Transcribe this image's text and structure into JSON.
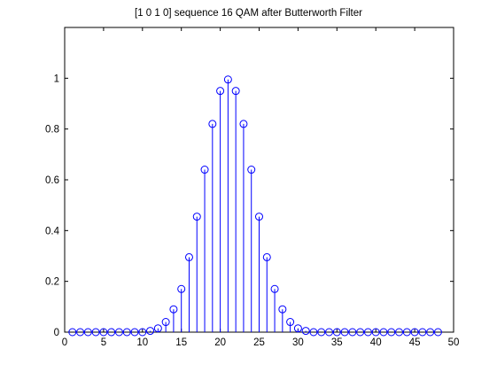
{
  "chart_data": {
    "type": "stem",
    "title": "[1 0 1 0] sequence 16 QAM after Butterworth Filter",
    "xlabel": "",
    "ylabel": "",
    "xlim": [
      0,
      50
    ],
    "ylim": [
      0,
      1.2
    ],
    "xticks": [
      0,
      5,
      10,
      15,
      20,
      25,
      30,
      35,
      40,
      45,
      50
    ],
    "yticks": [
      0,
      0.2,
      0.4,
      0.6,
      0.8,
      1
    ],
    "ytick_labels": [
      "0",
      "0.2",
      "0.4",
      "0.6",
      "0.8",
      "1"
    ],
    "grid": false,
    "marker": "circle",
    "series_color": "#0000ff",
    "x": [
      1,
      2,
      3,
      4,
      5,
      6,
      7,
      8,
      9,
      10,
      11,
      12,
      13,
      14,
      15,
      16,
      17,
      18,
      19,
      20,
      21,
      22,
      23,
      24,
      25,
      26,
      27,
      28,
      29,
      30,
      31,
      32,
      33,
      34,
      35,
      36,
      37,
      38,
      39,
      40,
      41,
      42,
      43,
      44,
      45,
      46,
      47,
      48
    ],
    "y": [
      0,
      0,
      0,
      0,
      0,
      0,
      0,
      0,
      0,
      0,
      0.005,
      0.015,
      0.04,
      0.09,
      0.17,
      0.295,
      0.455,
      0.64,
      0.82,
      0.95,
      0.995,
      0.95,
      0.82,
      0.64,
      0.455,
      0.295,
      0.17,
      0.09,
      0.04,
      0.015,
      0.005,
      0,
      0,
      0,
      0,
      0,
      0,
      0,
      0,
      0,
      0,
      0,
      0,
      0,
      0,
      0,
      0,
      0
    ]
  }
}
